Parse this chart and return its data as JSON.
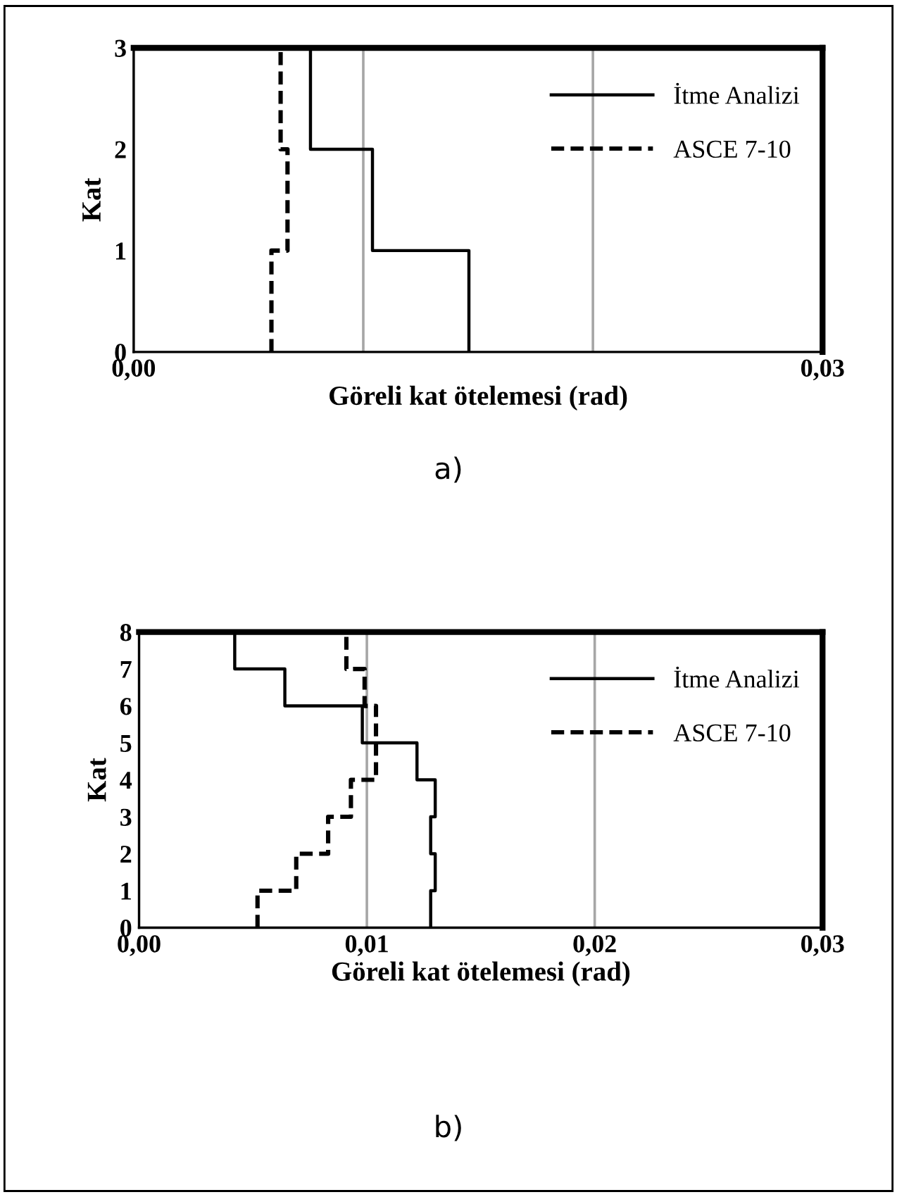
{
  "chart_data": [
    {
      "type": "line",
      "xlabel": "Göreli kat ötelemesi (rad)",
      "ylabel": "Kat",
      "annotations": [
        "a)"
      ],
      "xlim": [
        0,
        0.03
      ],
      "ylim": [
        0,
        3
      ],
      "xticks": [
        {
          "value": 0,
          "label": "0,00"
        },
        {
          "value": 0.01,
          "label": null
        },
        {
          "value": 0.02,
          "label": null
        },
        {
          "value": 0.03,
          "label": "0,03"
        }
      ],
      "yticks": [
        0,
        1,
        2,
        3
      ],
      "grid": "x",
      "legend": "top right",
      "series": [
        {
          "name": "İtme Analizi",
          "color": "#000000",
          "line_style": "solid",
          "x": [
            0.0146,
            0.0146,
            0.0104,
            0.0104,
            0.0077,
            0.0077
          ],
          "values": [
            0,
            1,
            1,
            2,
            2,
            3
          ]
        },
        {
          "name": "ASCE 7-10",
          "color": "#000000",
          "line_style": "dashed",
          "x": [
            0.006,
            0.006,
            0.0067,
            0.0067,
            0.0064,
            0.0064
          ],
          "values": [
            0,
            1,
            1,
            2,
            2,
            3
          ]
        }
      ]
    },
    {
      "type": "line",
      "xlabel": "Göreli kat ötelemesi (rad)",
      "ylabel": "Kat",
      "annotations": [
        "b)"
      ],
      "xlim": [
        0,
        0.03
      ],
      "ylim": [
        0,
        8
      ],
      "xticks": [
        {
          "value": 0,
          "label": "0,00"
        },
        {
          "value": 0.01,
          "label": "0,01"
        },
        {
          "value": 0.02,
          "label": "0,02"
        },
        {
          "value": 0.03,
          "label": "0,03"
        }
      ],
      "yticks": [
        0,
        1,
        2,
        3,
        4,
        5,
        6,
        7,
        8
      ],
      "grid": "x",
      "legend": "top right",
      "series": [
        {
          "name": "İtme Analizi",
          "color": "#000000",
          "line_style": "solid",
          "x": [
            0.0128,
            0.0128,
            0.013,
            0.013,
            0.0128,
            0.0128,
            0.013,
            0.013,
            0.0122,
            0.0122,
            0.0098,
            0.0098,
            0.0064,
            0.0064,
            0.0042,
            0.0042
          ],
          "values": [
            0,
            1,
            1,
            2,
            2,
            3,
            3,
            4,
            4,
            5,
            5,
            6,
            6,
            7,
            7,
            8
          ]
        },
        {
          "name": "ASCE 7-10",
          "color": "#000000",
          "line_style": "dashed",
          "x": [
            0.0052,
            0.0052,
            0.0069,
            0.0069,
            0.0083,
            0.0083,
            0.0093,
            0.0093,
            0.0104,
            0.0104,
            0.0104,
            0.0104,
            0.0099,
            0.0099,
            0.0091,
            0.0091
          ],
          "values": [
            0,
            1,
            1,
            2,
            2,
            3,
            3,
            4,
            4,
            5,
            5,
            6,
            6,
            7,
            7,
            8
          ]
        }
      ]
    }
  ]
}
